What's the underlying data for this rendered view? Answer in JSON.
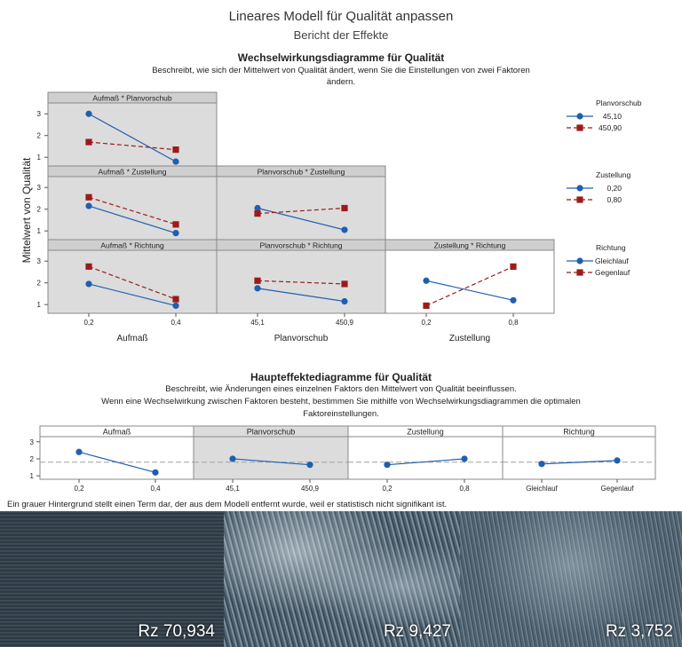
{
  "header": {
    "title": "Lineares Modell für Qualität anpassen",
    "subtitle": "Bericht der Effekte"
  },
  "interaction_section": {
    "title": "Wechselwirkungsdiagramme für Qualität",
    "desc_line1": "Beschreibt, wie sich der Mittelwert von Qualität ändert, wenn Sie die Einstellungen von zwei Faktoren",
    "desc_line2": "ändern.",
    "ylabel": "Mittelwert von Qualität"
  },
  "main_section": {
    "title": "Haupteffektediagramme für Qualität",
    "desc_line1": "Beschreibt, wie Änderungen eines einzelnen Faktors den Mittelwert von Qualität beeinflussen.",
    "desc_line2": "Wenn eine Wechselwirkung zwischen Faktoren besteht, bestimmen Sie mithilfe von Wechselwirkungsdiagrammen die optimalen",
    "desc_line3": "Faktoreinstellungen."
  },
  "footnote": "Ein grauer Hintergrund stellt einen Term dar, der aus dem Modell entfernt wurde, weil er statistisch nicht signifikant ist.",
  "photos": [
    {
      "label": "Rz 70,934"
    },
    {
      "label": "Rz 9,427"
    },
    {
      "label": "Rz 3,752"
    }
  ],
  "colors": {
    "series1": "#1f5fb0",
    "series2": "#9b1b1b",
    "removed_bg": "#dcdcdc",
    "panel_header": "#cfcfcf",
    "reference_line": "#a0a0a0"
  },
  "chart_data": [
    {
      "type": "line",
      "subtype": "interaction-matrix",
      "ylabel": "Mittelwert von Qualität",
      "yticks": [
        1,
        2,
        3
      ],
      "ylim": [
        0.6,
        3.5
      ],
      "factors": [
        {
          "name": "Aufmaß",
          "levels": [
            "0,2",
            "0,4"
          ]
        },
        {
          "name": "Planvorschub",
          "levels": [
            "45,1",
            "450,9"
          ]
        },
        {
          "name": "Zustellung",
          "levels": [
            "0,2",
            "0,8"
          ]
        }
      ],
      "legends": [
        {
          "title": "Planvorschub",
          "entries": [
            "45,10",
            "450,90"
          ]
        },
        {
          "title": "Zustellung",
          "entries": [
            "0,20",
            "0,80"
          ]
        },
        {
          "title": "Richtung",
          "entries": [
            "Gleichlauf",
            "Gegenlauf"
          ]
        }
      ],
      "panels": [
        {
          "title": "Aufmaß * Planvorschub",
          "row": 0,
          "col": 0,
          "removed": true,
          "series": [
            {
              "name": "45,10",
              "values": [
                3.0,
                0.8
              ]
            },
            {
              "name": "450,90",
              "values": [
                1.7,
                1.35
              ]
            }
          ]
        },
        {
          "title": "Aufmaß * Zustellung",
          "row": 1,
          "col": 0,
          "removed": true,
          "series": [
            {
              "name": "0,20",
              "values": [
                2.15,
                0.9
              ]
            },
            {
              "name": "0,80",
              "values": [
                2.55,
                1.3
              ]
            }
          ]
        },
        {
          "title": "Planvorschub * Zustellung",
          "row": 1,
          "col": 1,
          "removed": true,
          "series": [
            {
              "name": "0,20",
              "values": [
                2.05,
                1.05
              ]
            },
            {
              "name": "0,80",
              "values": [
                1.8,
                2.05
              ]
            }
          ]
        },
        {
          "title": "Aufmaß * Richtung",
          "row": 2,
          "col": 0,
          "removed": true,
          "series": [
            {
              "name": "Gleichlauf",
              "values": [
                1.95,
                0.95
              ]
            },
            {
              "name": "Gegenlauf",
              "values": [
                2.75,
                1.25
              ]
            }
          ]
        },
        {
          "title": "Planvorschub * Richtung",
          "row": 2,
          "col": 1,
          "removed": true,
          "series": [
            {
              "name": "Gleichlauf",
              "values": [
                1.75,
                1.15
              ]
            },
            {
              "name": "Gegenlauf",
              "values": [
                2.1,
                1.95
              ]
            }
          ]
        },
        {
          "title": "Zustellung * Richtung",
          "row": 2,
          "col": 2,
          "removed": false,
          "series": [
            {
              "name": "Gleichlauf",
              "values": [
                2.1,
                1.2
              ]
            },
            {
              "name": "Gegenlauf",
              "values": [
                0.95,
                2.75
              ]
            }
          ]
        }
      ]
    },
    {
      "type": "line",
      "subtype": "main-effects",
      "yticks": [
        1,
        2,
        3
      ],
      "ylim": [
        0.8,
        3.3
      ],
      "reference_mean": 1.8,
      "panels": [
        {
          "title": "Aufmaß",
          "removed": false,
          "categories": [
            "0,2",
            "0,4"
          ],
          "values": [
            2.4,
            1.2
          ]
        },
        {
          "title": "Planvorschub",
          "removed": true,
          "categories": [
            "45,1",
            "450,9"
          ],
          "values": [
            2.0,
            1.65
          ]
        },
        {
          "title": "Zustellung",
          "removed": false,
          "categories": [
            "0,2",
            "0,8"
          ],
          "values": [
            1.65,
            2.0
          ]
        },
        {
          "title": "Richtung",
          "removed": false,
          "categories": [
            "Gleichlauf",
            "Gegenlauf"
          ],
          "values": [
            1.7,
            1.9
          ]
        }
      ]
    }
  ]
}
